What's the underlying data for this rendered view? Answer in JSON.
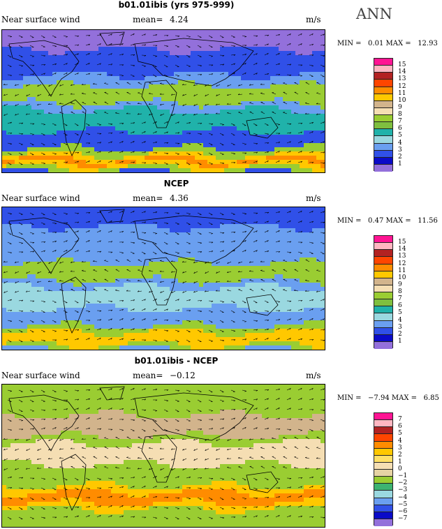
{
  "season": "ANN",
  "panels": [
    {
      "title": "b01.01ibis (yrs 975-999)",
      "variable": "Near surface wind",
      "mean_label": "mean=",
      "mean": "4.24",
      "units": "m/s",
      "min_label": "MIN =",
      "min": "0.01",
      "max_label": "MAX =",
      "max": "12.93",
      "colorbar": {
        "levels": [
          "15",
          "14",
          "13",
          "12",
          "11",
          "10",
          "9",
          "8",
          "7",
          "6",
          "5",
          "4",
          "3",
          "2",
          "1"
        ],
        "colors": [
          "#ff1493",
          "#ffb6c1",
          "#b22222",
          "#ff4500",
          "#ff8c00",
          "#ffc800",
          "#d2b48c",
          "#f5deb3",
          "#9acd32",
          "#7fbf3f",
          "#20b2aa",
          "#9ad8e0",
          "#6a9ff0",
          "#3050e8",
          "#0a0ac8",
          "#9370db"
        ]
      },
      "map_style": "model"
    },
    {
      "title": "NCEP",
      "variable": "Near surface wind",
      "mean_label": "mean=",
      "mean": "4.36",
      "units": "m/s",
      "min_label": "MIN =",
      "min": "0.47",
      "max_label": "MAX =",
      "max": "11.56",
      "colorbar": {
        "levels": [
          "15",
          "14",
          "13",
          "12",
          "11",
          "10",
          "9",
          "8",
          "7",
          "6",
          "5",
          "4",
          "3",
          "2",
          "1"
        ],
        "colors": [
          "#ff1493",
          "#ffb6c1",
          "#b22222",
          "#ff4500",
          "#ff8c00",
          "#ffc800",
          "#d2b48c",
          "#f5deb3",
          "#9acd32",
          "#7fbf3f",
          "#20b2aa",
          "#9ad8e0",
          "#6a9ff0",
          "#3050e8",
          "#0a0ac8",
          "#9370db"
        ]
      },
      "map_style": "obs"
    },
    {
      "title": "b01.01ibis - NCEP",
      "variable": "Near surface wind",
      "mean_label": "mean=",
      "mean": "−0.12",
      "units": "m/s",
      "min_label": "MIN =",
      "min": "−7.94",
      "max_label": "MAX =",
      "max": "6.85",
      "colorbar": {
        "levels": [
          "7",
          "6",
          "5",
          "4",
          "3",
          "2",
          "1",
          "0",
          "−1",
          "−2",
          "−3",
          "−4",
          "−5",
          "−6",
          "−7"
        ],
        "colors": [
          "#ff1493",
          "#ffb6c1",
          "#b22222",
          "#ff4500",
          "#ff8c00",
          "#ffc800",
          "#ffe066",
          "#f5deb3",
          "#e6d3a3",
          "#9acd32",
          "#3cb371",
          "#9ad8e0",
          "#6a9ff0",
          "#3050e8",
          "#0a0ac8",
          "#9370db"
        ]
      },
      "map_style": "diff"
    }
  ]
}
